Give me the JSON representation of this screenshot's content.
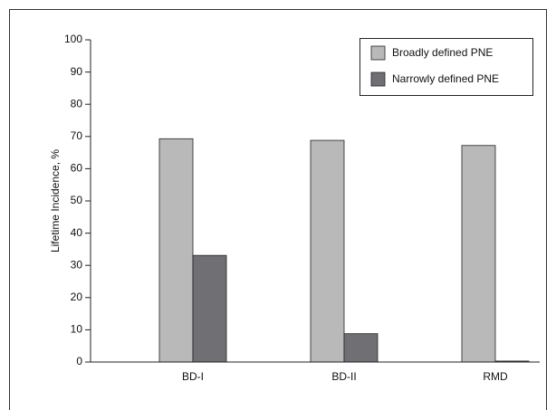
{
  "chart_data": {
    "type": "bar",
    "y_label": "Lifetime Incidence, %",
    "categories": [
      "BD-I",
      "BD-II",
      "RMD"
    ],
    "series": [
      {
        "name": "Broadly defined PNE",
        "color": "#b9b9b9",
        "values": [
          69.3,
          68.8,
          67.2
        ]
      },
      {
        "name": "Narrowly defined PNE",
        "color": "#707074",
        "values": [
          33.1,
          8.8,
          0.3
        ]
      }
    ],
    "ylim": [
      0,
      100
    ],
    "yticks": [
      0,
      10,
      20,
      30,
      40,
      50,
      60,
      70,
      80,
      90,
      100
    ],
    "legend": "upper right"
  }
}
